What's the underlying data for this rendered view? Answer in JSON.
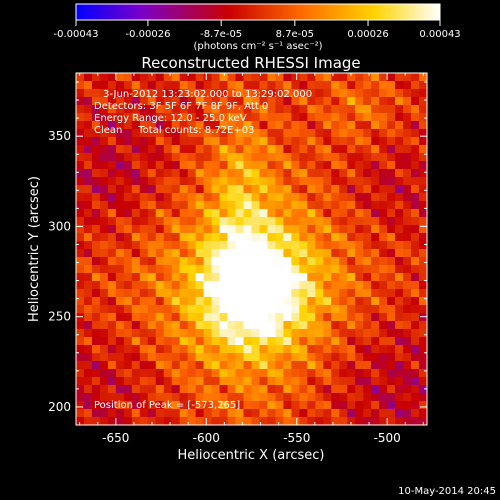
{
  "chart_data": {
    "type": "heatmap",
    "title": "Reconstructed RHESSI Image",
    "xlabel": "Heliocentric X (arcsec)",
    "ylabel": "Heliocentric Y (arcsec)",
    "xlim": [
      -672,
      -478
    ],
    "ylim": [
      190,
      385
    ],
    "xticks": [
      -650,
      -600,
      -550,
      -500
    ],
    "yticks": [
      200,
      250,
      300,
      350
    ],
    "colorbar": {
      "ticks": [
        -0.00043,
        -0.00026,
        -8.7e-05,
        8.7e-05,
        0.00026,
        0.00043
      ],
      "tick_labels": [
        "-0.00043",
        "-0.00026",
        "-8.7e-05",
        "8.7e-05",
        "0.00026",
        "0.00043"
      ],
      "unit_label": "(photons cm⁻² s⁻¹ asec⁻²)",
      "range": [
        -0.00043,
        0.00043
      ],
      "colormap": [
        "#0000ff",
        "#7a00c8",
        "#c80000",
        "#ff6a00",
        "#ffd400",
        "#ffffff"
      ]
    },
    "peak": [
      -573,
      265
    ],
    "annotations": [
      "3-Jun-2012 13:23:02.000 to 13:29:02.000",
      "Detectors: 3F 5F 6F 7F 8F 9F, Att 0",
      "Energy Range: 12.0 - 25.0 keV",
      "Clean     Total counts: 8.72E+03",
      "Position of Peak = [-573,265]"
    ],
    "footer_date": "10-May-2014 20:45"
  }
}
